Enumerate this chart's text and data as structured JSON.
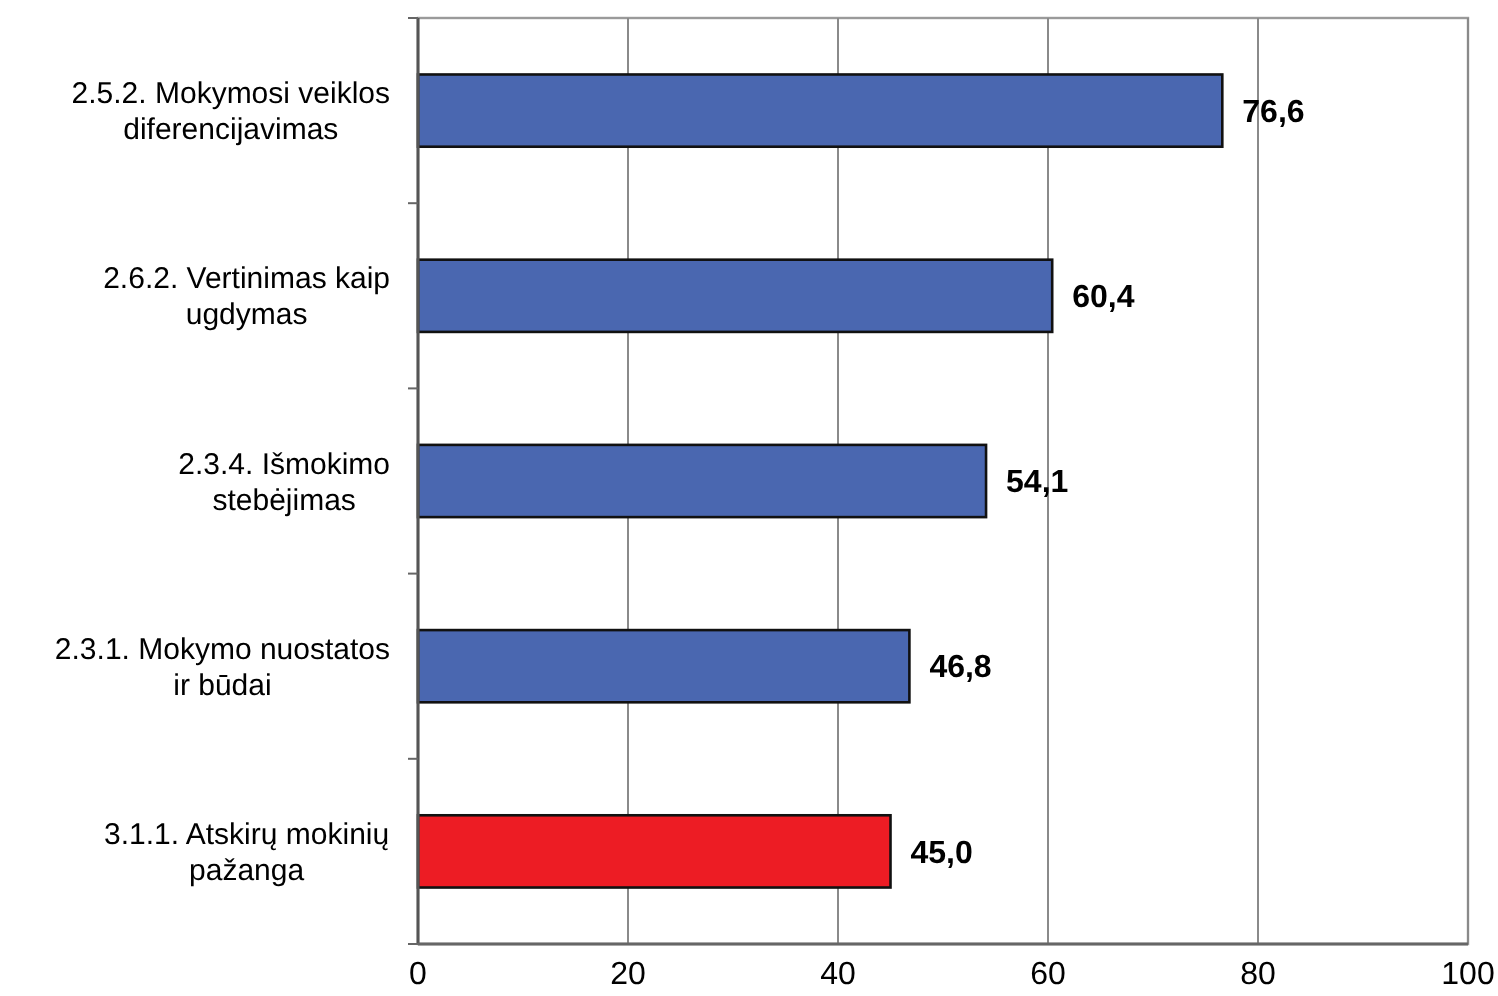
{
  "chart_data": {
    "type": "bar",
    "orientation": "horizontal",
    "categories": [
      "2.5.2. Mokymosi veiklos\ndiferencijavimas",
      "2.6.2. Vertinimas kaip\nugdymas",
      "2.3.4. Išmokimo\nstebėjimas",
      "2.3.1. Mokymo nuostatos\nir būdai",
      "3.1.1. Atskirų mokinių\npažanga"
    ],
    "values": [
      76.6,
      60.4,
      54.1,
      46.8,
      45.0
    ],
    "colors": [
      "#4a67b0",
      "#4a67b0",
      "#4a67b0",
      "#4a67b0",
      "#ed1c24"
    ],
    "value_labels": [
      "76,6",
      "60,4",
      "54,1",
      "46,8",
      "45,0"
    ],
    "xlim": [
      0,
      100
    ],
    "xticks": [
      0,
      20,
      40,
      60,
      80,
      100
    ],
    "grid": "x"
  }
}
